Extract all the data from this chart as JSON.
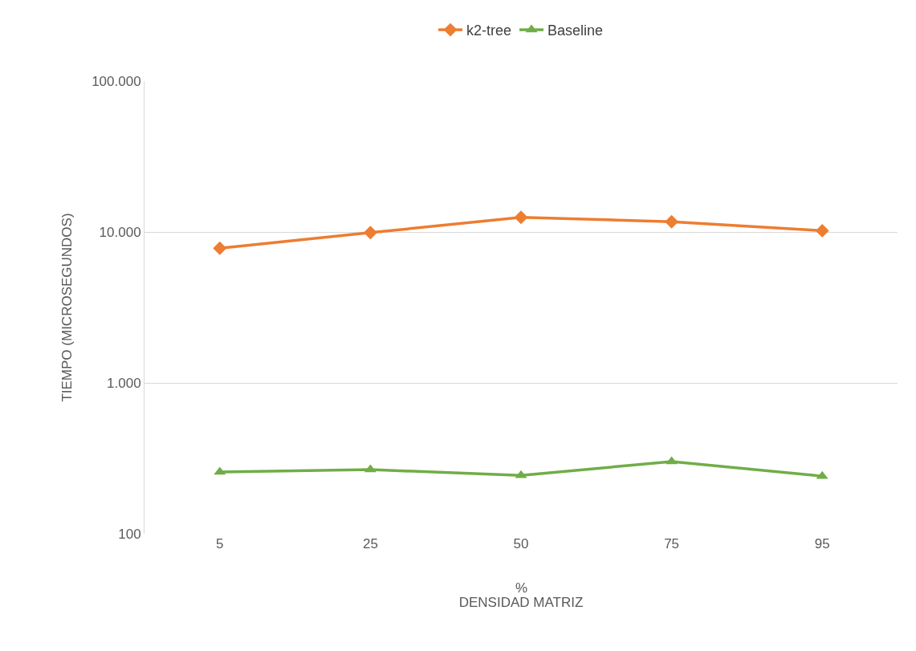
{
  "chart_data": {
    "type": "line",
    "xlabel": "DENSIDAD MATRIZ",
    "ylabel": "TIEMPO (MICROSEGUNDOS)",
    "annotations": [
      "%"
    ],
    "categories": [
      "5",
      "25",
      "50",
      "75",
      "95"
    ],
    "series": [
      {
        "name": "k2-tree",
        "color": "#ed7d31",
        "marker": "diamond",
        "values": [
          7800,
          9900,
          12500,
          11700,
          10200
        ]
      },
      {
        "name": "Baseline",
        "color": "#70ad47",
        "marker": "triangle",
        "values": [
          257,
          266,
          244,
          301,
          241
        ]
      }
    ],
    "log": "y",
    "ylim": [
      100,
      100000
    ],
    "yticks": [
      {
        "value": 100,
        "label": "100"
      },
      {
        "value": 1000,
        "label": "1.000"
      },
      {
        "value": 10000,
        "label": "10.000"
      },
      {
        "value": 100000,
        "label": "100.000"
      }
    ],
    "grid": "y",
    "legend": "top",
    "line_style": "solid"
  }
}
